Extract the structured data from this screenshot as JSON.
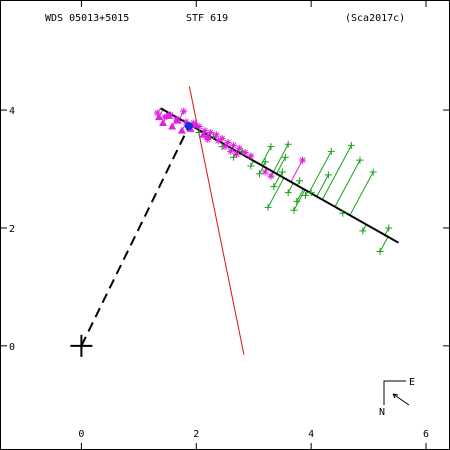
{
  "header": {
    "wds": "WDS 05013+5015",
    "name": "STF 619",
    "ref": "(Sca2017c)"
  },
  "compass": {
    "east_label": "E",
    "north_label": "N"
  },
  "colors": {
    "green_obs": "#16a016",
    "magenta_obs": "#e020e0",
    "orbit": "#000000",
    "node_line": "#e01010",
    "periastron": "#1030e0"
  },
  "chart_data": {
    "type": "scatter",
    "title": "",
    "xlabel": "",
    "ylabel": "",
    "xlim": [
      -1.4,
      6.4
    ],
    "ylim": [
      -1.75,
      5.85
    ],
    "x_ticks": [
      0,
      2,
      4,
      6
    ],
    "y_ticks": [
      0,
      2,
      4
    ],
    "x_tick_labels": [
      "0",
      "2",
      "4",
      "6"
    ],
    "y_tick_labels": [
      "0",
      "2",
      "4"
    ],
    "primary_star": [
      0,
      0
    ],
    "orbit_line": [
      [
        1.38,
        4.03
      ],
      [
        5.52,
        1.75
      ]
    ],
    "line_of_nodes": [
      [
        1.88,
        4.4
      ],
      [
        2.83,
        -0.15
      ]
    ],
    "primary_to_periastron": [
      [
        0,
        0
      ],
      [
        1.9,
        3.78
      ]
    ],
    "periastron_point": [
      1.87,
      3.73
    ],
    "series": [
      {
        "marker": "plus",
        "points": [
          [
            5.2,
            1.6
          ],
          [
            4.9,
            1.95
          ],
          [
            4.55,
            2.25
          ],
          [
            4.0,
            2.6
          ],
          [
            3.75,
            2.45
          ],
          [
            3.6,
            2.6
          ],
          [
            3.35,
            2.7
          ],
          [
            3.25,
            2.35
          ],
          [
            3.7,
            2.3
          ],
          [
            3.8,
            2.8
          ],
          [
            3.5,
            2.95
          ],
          [
            3.3,
            2.88
          ],
          [
            4.3,
            2.9
          ],
          [
            3.1,
            2.92
          ],
          [
            2.95,
            3.05
          ],
          [
            5.08,
            2.95
          ],
          [
            4.85,
            3.15
          ],
          [
            4.7,
            3.4
          ],
          [
            4.35,
            3.3
          ],
          [
            3.55,
            3.2
          ],
          [
            3.2,
            3.12
          ],
          [
            2.8,
            3.3
          ],
          [
            2.45,
            3.38
          ],
          [
            2.3,
            3.55
          ],
          [
            2.05,
            3.62
          ],
          [
            5.35,
            2.0
          ],
          [
            3.3,
            3.38
          ],
          [
            2.65,
            3.2
          ],
          [
            3.9,
            2.55
          ],
          [
            3.6,
            3.42
          ]
        ]
      },
      {
        "marker": "asterisk",
        "points": [
          [
            1.32,
            3.95
          ],
          [
            1.45,
            3.88
          ],
          [
            1.55,
            3.92
          ],
          [
            1.65,
            3.85
          ],
          [
            1.78,
            3.98
          ],
          [
            1.82,
            3.8
          ],
          [
            1.95,
            3.78
          ],
          [
            2.05,
            3.72
          ],
          [
            2.15,
            3.65
          ],
          [
            2.25,
            3.62
          ],
          [
            2.35,
            3.58
          ],
          [
            2.45,
            3.52
          ],
          [
            2.55,
            3.45
          ],
          [
            2.65,
            3.4
          ],
          [
            2.75,
            3.35
          ],
          [
            2.85,
            3.28
          ],
          [
            2.95,
            3.22
          ],
          [
            2.6,
            3.3
          ],
          [
            2.7,
            3.25
          ],
          [
            3.2,
            2.95
          ],
          [
            3.3,
            2.88
          ],
          [
            3.85,
            3.15
          ],
          [
            2.2,
            3.5
          ],
          [
            2.38,
            3.48
          ],
          [
            2.5,
            3.38
          ]
        ]
      },
      {
        "marker": "triangle",
        "points": [
          [
            1.35,
            3.88
          ],
          [
            1.42,
            3.78
          ],
          [
            1.52,
            3.9
          ],
          [
            1.58,
            3.72
          ],
          [
            1.68,
            3.82
          ],
          [
            1.75,
            3.65
          ],
          [
            1.9,
            3.68
          ],
          [
            2.0,
            3.75
          ],
          [
            2.12,
            3.58
          ],
          [
            2.2,
            3.55
          ]
        ]
      }
    ]
  }
}
